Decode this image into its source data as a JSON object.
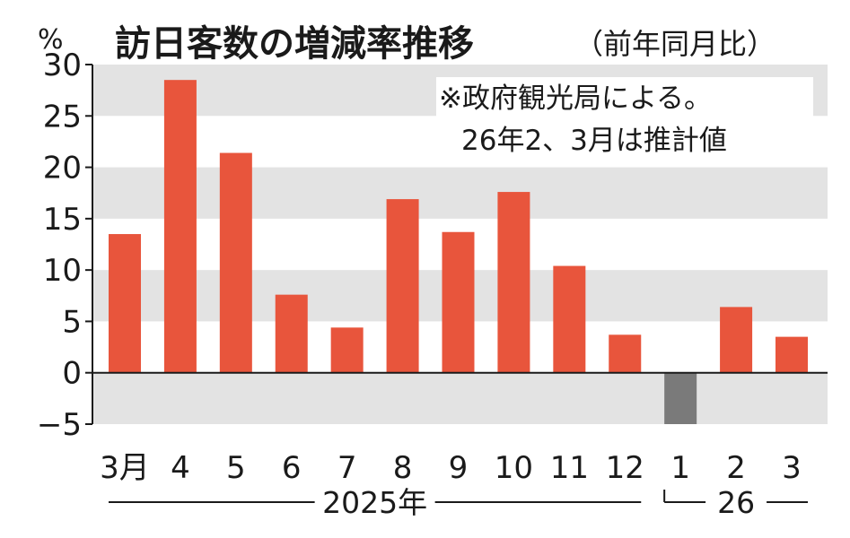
{
  "chart_data": {
    "type": "bar",
    "title": "訪日客数の増減率推移",
    "subtitle": "（前年同月比）",
    "unit": "%",
    "note_lines": [
      "※政府観光局による。",
      "26年2、3月は推計値"
    ],
    "categories": [
      "3月",
      "4",
      "5",
      "6",
      "7",
      "8",
      "9",
      "10",
      "11",
      "12",
      "1",
      "2",
      "3"
    ],
    "values": [
      13.5,
      28.5,
      21.4,
      7.6,
      4.4,
      16.9,
      13.7,
      17.6,
      10.4,
      3.7,
      -5.0,
      6.4,
      3.5
    ],
    "year_groups": [
      {
        "label": "2025年",
        "from": 0,
        "to": 9
      },
      {
        "label": "26",
        "from": 10,
        "to": 12
      }
    ],
    "ylim": [
      -5,
      30
    ],
    "yticks": [
      30,
      25,
      20,
      15,
      10,
      5,
      0,
      -5
    ],
    "ytick_labels": [
      "30",
      "25",
      "20",
      "15",
      "10",
      "5",
      "0",
      "−5"
    ],
    "grid": "alternating bands",
    "colors": {
      "positive": "#e8553c",
      "negative": "#7a7a7a",
      "band": "#e3e3e3",
      "text": "#1a1a1a"
    }
  }
}
